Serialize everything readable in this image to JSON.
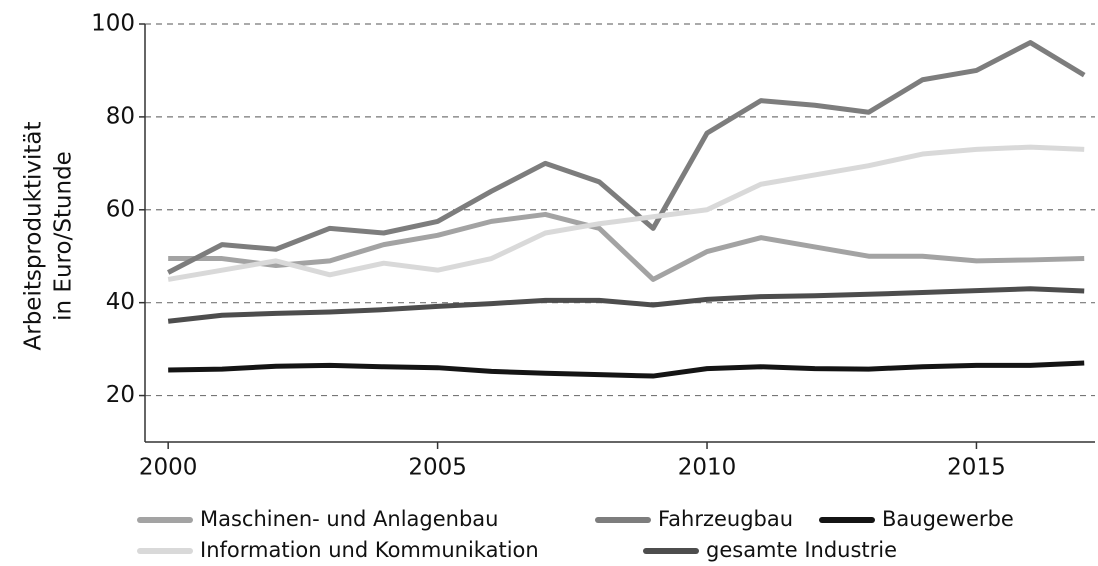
{
  "chart_data": {
    "type": "line",
    "ylabel": [
      "Arbeitsproduktivität",
      "in Euro/Stunde"
    ],
    "x": [
      2000,
      2001,
      2002,
      2003,
      2004,
      2005,
      2006,
      2007,
      2008,
      2009,
      2010,
      2011,
      2012,
      2013,
      2014,
      2015,
      2016,
      2017
    ],
    "series": [
      {
        "name": "Maschinen- und Anlagenbau",
        "color": "#a3a3a3",
        "values": [
          49.5,
          49.5,
          48,
          49,
          52.5,
          54.5,
          57.5,
          59,
          56,
          45,
          51,
          54,
          52,
          50,
          50,
          49,
          49.2,
          49.5
        ]
      },
      {
        "name": "Fahrzeugbau",
        "color": "#7d7d7d",
        "values": [
          46.5,
          52.5,
          51.5,
          56,
          55,
          57.5,
          64,
          70,
          66,
          56,
          76.5,
          83.5,
          82.5,
          81,
          88,
          90,
          96,
          89
        ]
      },
      {
        "name": "Baugewerbe",
        "color": "#141414",
        "values": [
          25.5,
          25.7,
          26.3,
          26.5,
          26.2,
          26,
          25.2,
          24.8,
          24.5,
          24.2,
          25.8,
          26.2,
          25.8,
          25.7,
          26.2,
          26.5,
          26.5,
          27
        ]
      },
      {
        "name": "Information und Kommunikation",
        "color": "#d9d9d9",
        "values": [
          45,
          47,
          49,
          46,
          48.5,
          47,
          49.5,
          55,
          57,
          58.5,
          60,
          65.5,
          67.5,
          69.5,
          72,
          73,
          73.5,
          73
        ]
      },
      {
        "name": "gesamte Industrie",
        "color": "#4d4d4d",
        "values": [
          36,
          37.3,
          37.7,
          38,
          38.5,
          39.2,
          39.8,
          40.5,
          40.5,
          39.5,
          40.7,
          41.3,
          41.5,
          41.8,
          42.2,
          42.6,
          43,
          42.5
        ]
      }
    ],
    "xlim": [
      1999.57,
      2017.2
    ],
    "xticks": [
      2000,
      2005,
      2010,
      2015
    ],
    "ylim": [
      10,
      100
    ],
    "yticks": [
      20,
      40,
      60,
      80,
      100
    ],
    "grid": true
  }
}
